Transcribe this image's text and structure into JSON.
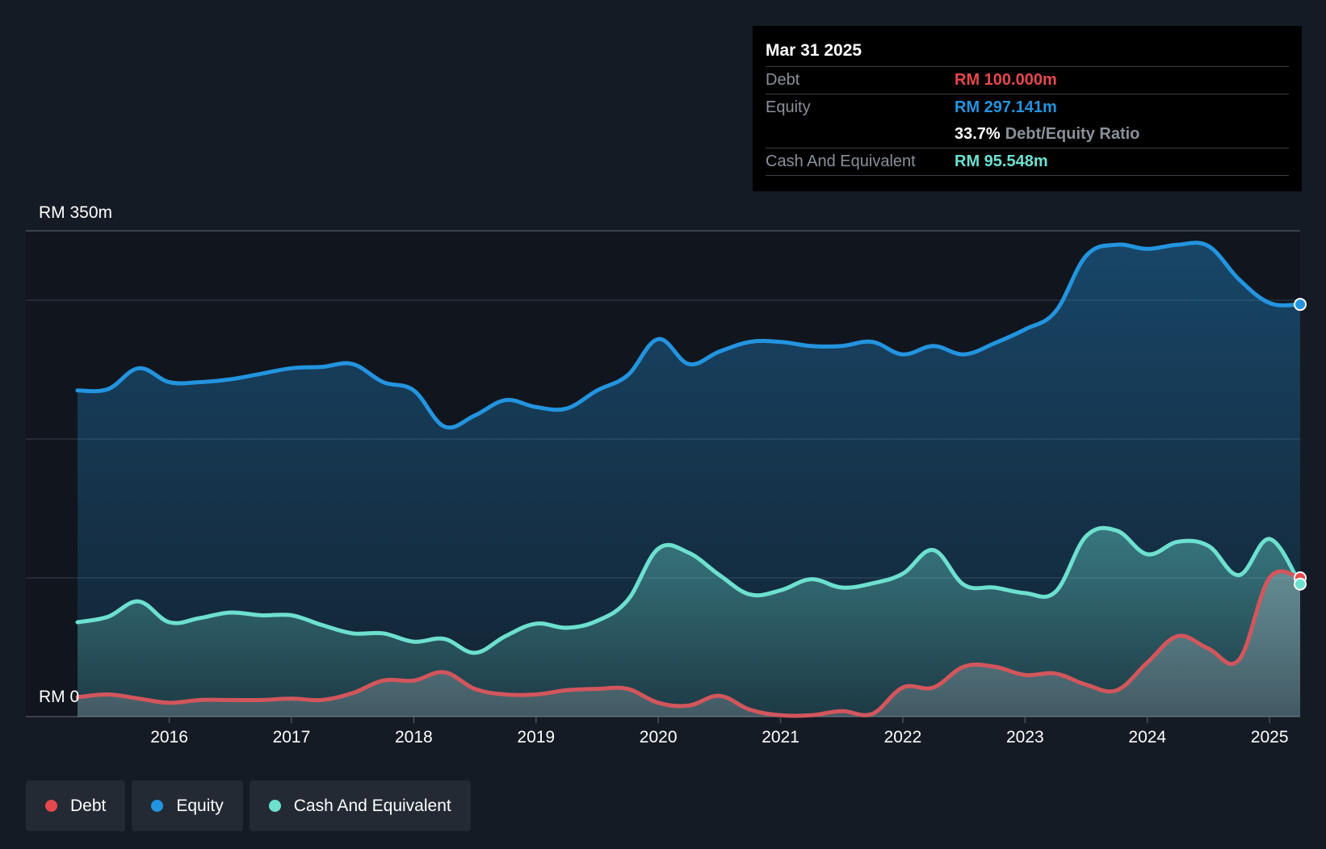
{
  "colors": {
    "debt": "#e5484d",
    "equity": "#2394df",
    "cash": "#6de0d0",
    "background": "#151b24",
    "plot": "#11161e"
  },
  "tooltip": {
    "date": "Mar 31 2025",
    "debt_label": "Debt",
    "debt_value": "RM 100.000m",
    "equity_label": "Equity",
    "equity_value": "RM 297.141m",
    "ratio_value": "33.7%",
    "ratio_label": "Debt/Equity Ratio",
    "cash_label": "Cash And Equivalent",
    "cash_value": "RM 95.548m"
  },
  "legend": {
    "debt": "Debt",
    "equity": "Equity",
    "cash": "Cash And Equivalent"
  },
  "chart_data": {
    "type": "area",
    "title": "",
    "ylabel_top": "RM 350m",
    "ylabel_bottom": "RM 0",
    "ylim": [
      0,
      350
    ],
    "xlim": [
      2015.25,
      2025.25
    ],
    "x_ticks": [
      {
        "value": 2016,
        "label": "2016"
      },
      {
        "value": 2017,
        "label": "2017"
      },
      {
        "value": 2018,
        "label": "2018"
      },
      {
        "value": 2019,
        "label": "2019"
      },
      {
        "value": 2020,
        "label": "2020"
      },
      {
        "value": 2021,
        "label": "2021"
      },
      {
        "value": 2022,
        "label": "2022"
      },
      {
        "value": 2023,
        "label": "2023"
      },
      {
        "value": 2024,
        "label": "2024"
      },
      {
        "value": 2025,
        "label": "2025"
      }
    ],
    "series": [
      {
        "name": "Equity",
        "key": "equity",
        "x": [
          2015.25,
          2015.5,
          2015.75,
          2016.0,
          2016.25,
          2016.5,
          2016.75,
          2017.0,
          2017.25,
          2017.5,
          2017.75,
          2018.0,
          2018.25,
          2018.5,
          2018.75,
          2019.0,
          2019.25,
          2019.5,
          2019.75,
          2020.0,
          2020.25,
          2020.5,
          2020.75,
          2021.0,
          2021.25,
          2021.5,
          2021.75,
          2022.0,
          2022.25,
          2022.5,
          2022.75,
          2023.0,
          2023.25,
          2023.5,
          2023.75,
          2024.0,
          2024.25,
          2024.5,
          2024.75,
          2025.0,
          2025.25
        ],
        "values": [
          235,
          236,
          251,
          241,
          241,
          243,
          247,
          251,
          252,
          254,
          241,
          235,
          209,
          217,
          228,
          223,
          222,
          235,
          246,
          272,
          254,
          263,
          270,
          270,
          267,
          267,
          270,
          261,
          267,
          261,
          269,
          279,
          292,
          332,
          340,
          337,
          340,
          339,
          315,
          298,
          297
        ]
      },
      {
        "name": "Cash And Equivalent",
        "key": "cash",
        "x": [
          2015.25,
          2015.5,
          2015.75,
          2016.0,
          2016.25,
          2016.5,
          2016.75,
          2017.0,
          2017.25,
          2017.5,
          2017.75,
          2018.0,
          2018.25,
          2018.5,
          2018.75,
          2019.0,
          2019.25,
          2019.5,
          2019.75,
          2020.0,
          2020.25,
          2020.5,
          2020.75,
          2021.0,
          2021.25,
          2021.5,
          2021.75,
          2022.0,
          2022.25,
          2022.5,
          2022.75,
          2023.0,
          2023.25,
          2023.5,
          2023.75,
          2024.0,
          2024.25,
          2024.5,
          2024.75,
          2025.0,
          2025.25
        ],
        "values": [
          68,
          72,
          83,
          68,
          71,
          75,
          73,
          73,
          66,
          60,
          60,
          54,
          56,
          46,
          58,
          67,
          64,
          69,
          84,
          121,
          118,
          102,
          88,
          91,
          99,
          93,
          96,
          103,
          120,
          95,
          93,
          89,
          90,
          130,
          134,
          117,
          126,
          123,
          102,
          128,
          95.5
        ]
      },
      {
        "name": "Debt",
        "key": "debt",
        "x": [
          2015.25,
          2015.5,
          2015.75,
          2016.0,
          2016.25,
          2016.5,
          2016.75,
          2017.0,
          2017.25,
          2017.5,
          2017.75,
          2018.0,
          2018.25,
          2018.5,
          2018.75,
          2019.0,
          2019.25,
          2019.5,
          2019.75,
          2020.0,
          2020.25,
          2020.5,
          2020.75,
          2021.0,
          2021.25,
          2021.5,
          2021.75,
          2022.0,
          2022.25,
          2022.5,
          2022.75,
          2023.0,
          2023.25,
          2023.5,
          2023.75,
          2024.0,
          2024.25,
          2024.5,
          2024.75,
          2025.0,
          2025.25
        ],
        "values": [
          14,
          16,
          13,
          10,
          12,
          12,
          12,
          13,
          12,
          17,
          26,
          26,
          32,
          20,
          16,
          16,
          19,
          20,
          20,
          10,
          8,
          15,
          5,
          1,
          1,
          4,
          2,
          21,
          21,
          36,
          36,
          30,
          31,
          23,
          19,
          39,
          58,
          49,
          41,
          100,
          100
        ]
      }
    ]
  }
}
